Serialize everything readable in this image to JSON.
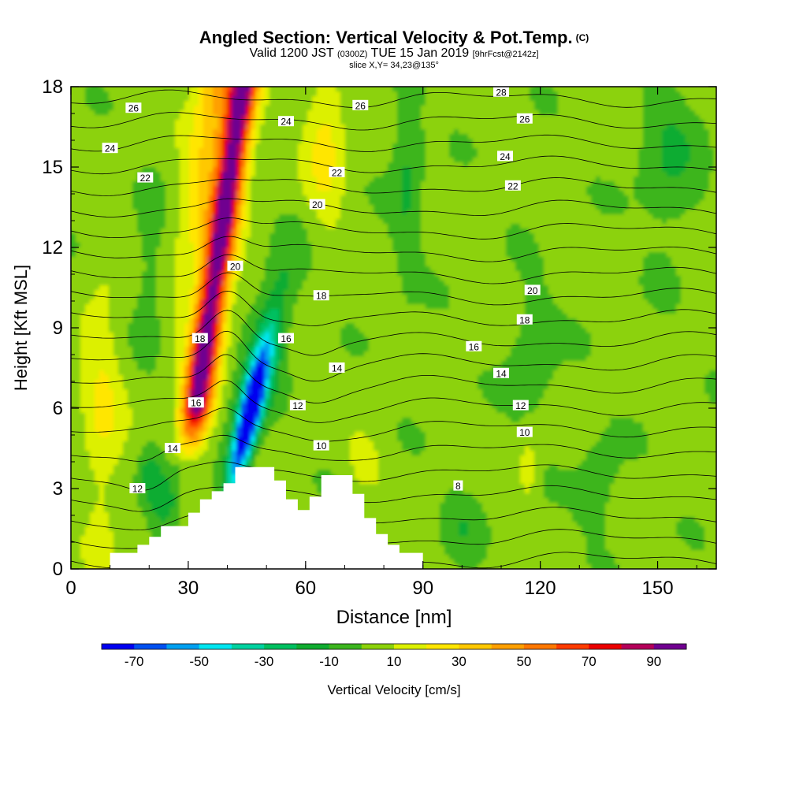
{
  "title": {
    "main": "Angled Section: Vertical Velocity & Pot.Temp.",
    "copyright": "(C)",
    "valid_prefix": "Valid 1200 JST",
    "valid_utc": "(0300Z)",
    "valid_date": "TUE 15 Jan 2019",
    "forecast": "[9hrFcst@2142z]",
    "slice": "slice X,Y= 34,23@135°"
  },
  "chart_data": {
    "type": "heatmap",
    "xlabel": "Distance [nm]",
    "ylabel": "Height [Kft MSL]",
    "xlim": [
      0,
      165
    ],
    "ylim": [
      0,
      18
    ],
    "x_ticks": [
      0,
      30,
      60,
      90,
      120,
      150
    ],
    "y_ticks": [
      0,
      3,
      6,
      9,
      12,
      15,
      18
    ],
    "colorbar": {
      "label": "Vertical Velocity [cm/s]",
      "tick_labels": [
        -70,
        -50,
        -30,
        -10,
        10,
        30,
        50,
        70,
        90
      ],
      "levels": [
        -80,
        -70,
        -60,
        -50,
        -40,
        -30,
        -20,
        -10,
        0,
        10,
        20,
        30,
        40,
        50,
        60,
        70,
        80,
        90,
        100
      ],
      "colors": [
        "#0000f0",
        "#0050f0",
        "#00a0f0",
        "#00e6f0",
        "#00d2a0",
        "#00c060",
        "#10ac30",
        "#3cb51e",
        "#8cd20a",
        "#dcf000",
        "#ffe600",
        "#ffc800",
        "#ffa000",
        "#ff7800",
        "#ff3c00",
        "#eb0000",
        "#b4005a",
        "#700090"
      ]
    },
    "vertical_velocity_features": [
      {
        "kind": "updraft",
        "x_center": 34,
        "z_range": [
          4,
          18
        ],
        "peak_cm_s": 95
      },
      {
        "kind": "downdraft",
        "x_center": 45,
        "z_range": [
          3,
          10
        ],
        "min_cm_s": -70
      },
      {
        "kind": "weak updraft",
        "x_center": 65,
        "z_range": [
          13,
          18
        ],
        "peak_cm_s": 20
      },
      {
        "kind": "weak updraft",
        "x_center": 8,
        "z_range": [
          2,
          12
        ],
        "peak_cm_s": 20
      },
      {
        "kind": "weak updraft",
        "x_center": 117,
        "z_range": [
          3,
          4.5
        ],
        "peak_cm_s": 20
      },
      {
        "kind": "weak downdraft",
        "x_center": 86,
        "z_range": [
          12,
          18
        ],
        "min_cm_s": -15
      }
    ],
    "potential_temperature_contours": {
      "labels_shown": [
        8,
        10,
        12,
        12,
        14,
        14,
        16,
        16,
        16,
        18,
        18,
        18,
        20,
        20,
        20,
        22,
        22,
        22,
        24,
        24,
        24,
        26,
        26,
        26,
        28
      ]
    },
    "terrain_profile": [
      [
        0,
        0
      ],
      [
        10,
        0
      ],
      [
        10,
        0.6
      ],
      [
        17,
        0.6
      ],
      [
        17,
        0.9
      ],
      [
        20,
        0.9
      ],
      [
        20,
        1.2
      ],
      [
        23,
        1.2
      ],
      [
        23,
        1.6
      ],
      [
        30,
        1.6
      ],
      [
        30,
        2.1
      ],
      [
        33,
        2.1
      ],
      [
        33,
        2.6
      ],
      [
        36,
        2.6
      ],
      [
        36,
        2.9
      ],
      [
        39,
        2.9
      ],
      [
        39,
        3.2
      ],
      [
        42,
        3.2
      ],
      [
        42,
        3.8
      ],
      [
        52,
        3.8
      ],
      [
        52,
        3.3
      ],
      [
        55,
        3.3
      ],
      [
        55,
        2.6
      ],
      [
        58,
        2.6
      ],
      [
        58,
        2.2
      ],
      [
        61,
        2.2
      ],
      [
        61,
        2.7
      ],
      [
        64,
        2.7
      ],
      [
        64,
        3.5
      ],
      [
        72,
        3.5
      ],
      [
        72,
        2.8
      ],
      [
        75,
        2.8
      ],
      [
        75,
        1.9
      ],
      [
        78,
        1.9
      ],
      [
        78,
        1.3
      ],
      [
        81,
        1.3
      ],
      [
        81,
        0.9
      ],
      [
        84,
        0.9
      ],
      [
        84,
        0.6
      ],
      [
        90,
        0.6
      ],
      [
        90,
        0
      ]
    ]
  }
}
